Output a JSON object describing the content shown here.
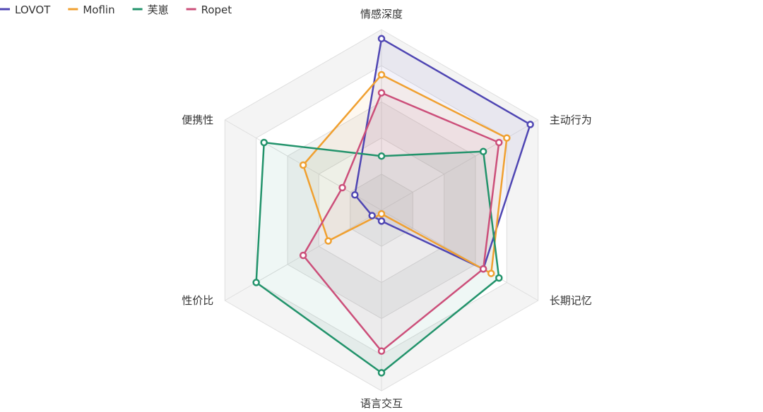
{
  "chart_data": {
    "type": "radar",
    "title": "",
    "axes": [
      "情感深度",
      "主动行为",
      "长期记忆",
      "语言交互",
      "性价比",
      "便携性"
    ],
    "range": [
      0,
      10
    ],
    "grid_levels": 5,
    "legend_position": "top-left",
    "series": [
      {
        "name": "LOVOT",
        "color": "#4f46b3",
        "values": [
          9.5,
          9.5,
          6.5,
          0.6,
          0.6,
          1.7
        ]
      },
      {
        "name": "Moflin",
        "color": "#f0a030",
        "values": [
          7.5,
          8.0,
          7.0,
          0.2,
          3.4,
          5.0
        ]
      },
      {
        "name": "芙崽",
        "color": "#22936b",
        "values": [
          3.0,
          6.5,
          7.5,
          9.0,
          8.0,
          7.5
        ]
      },
      {
        "name": "Ropet",
        "color": "#cc4f7a",
        "values": [
          6.5,
          7.5,
          6.5,
          7.8,
          5.0,
          2.5
        ]
      }
    ]
  }
}
